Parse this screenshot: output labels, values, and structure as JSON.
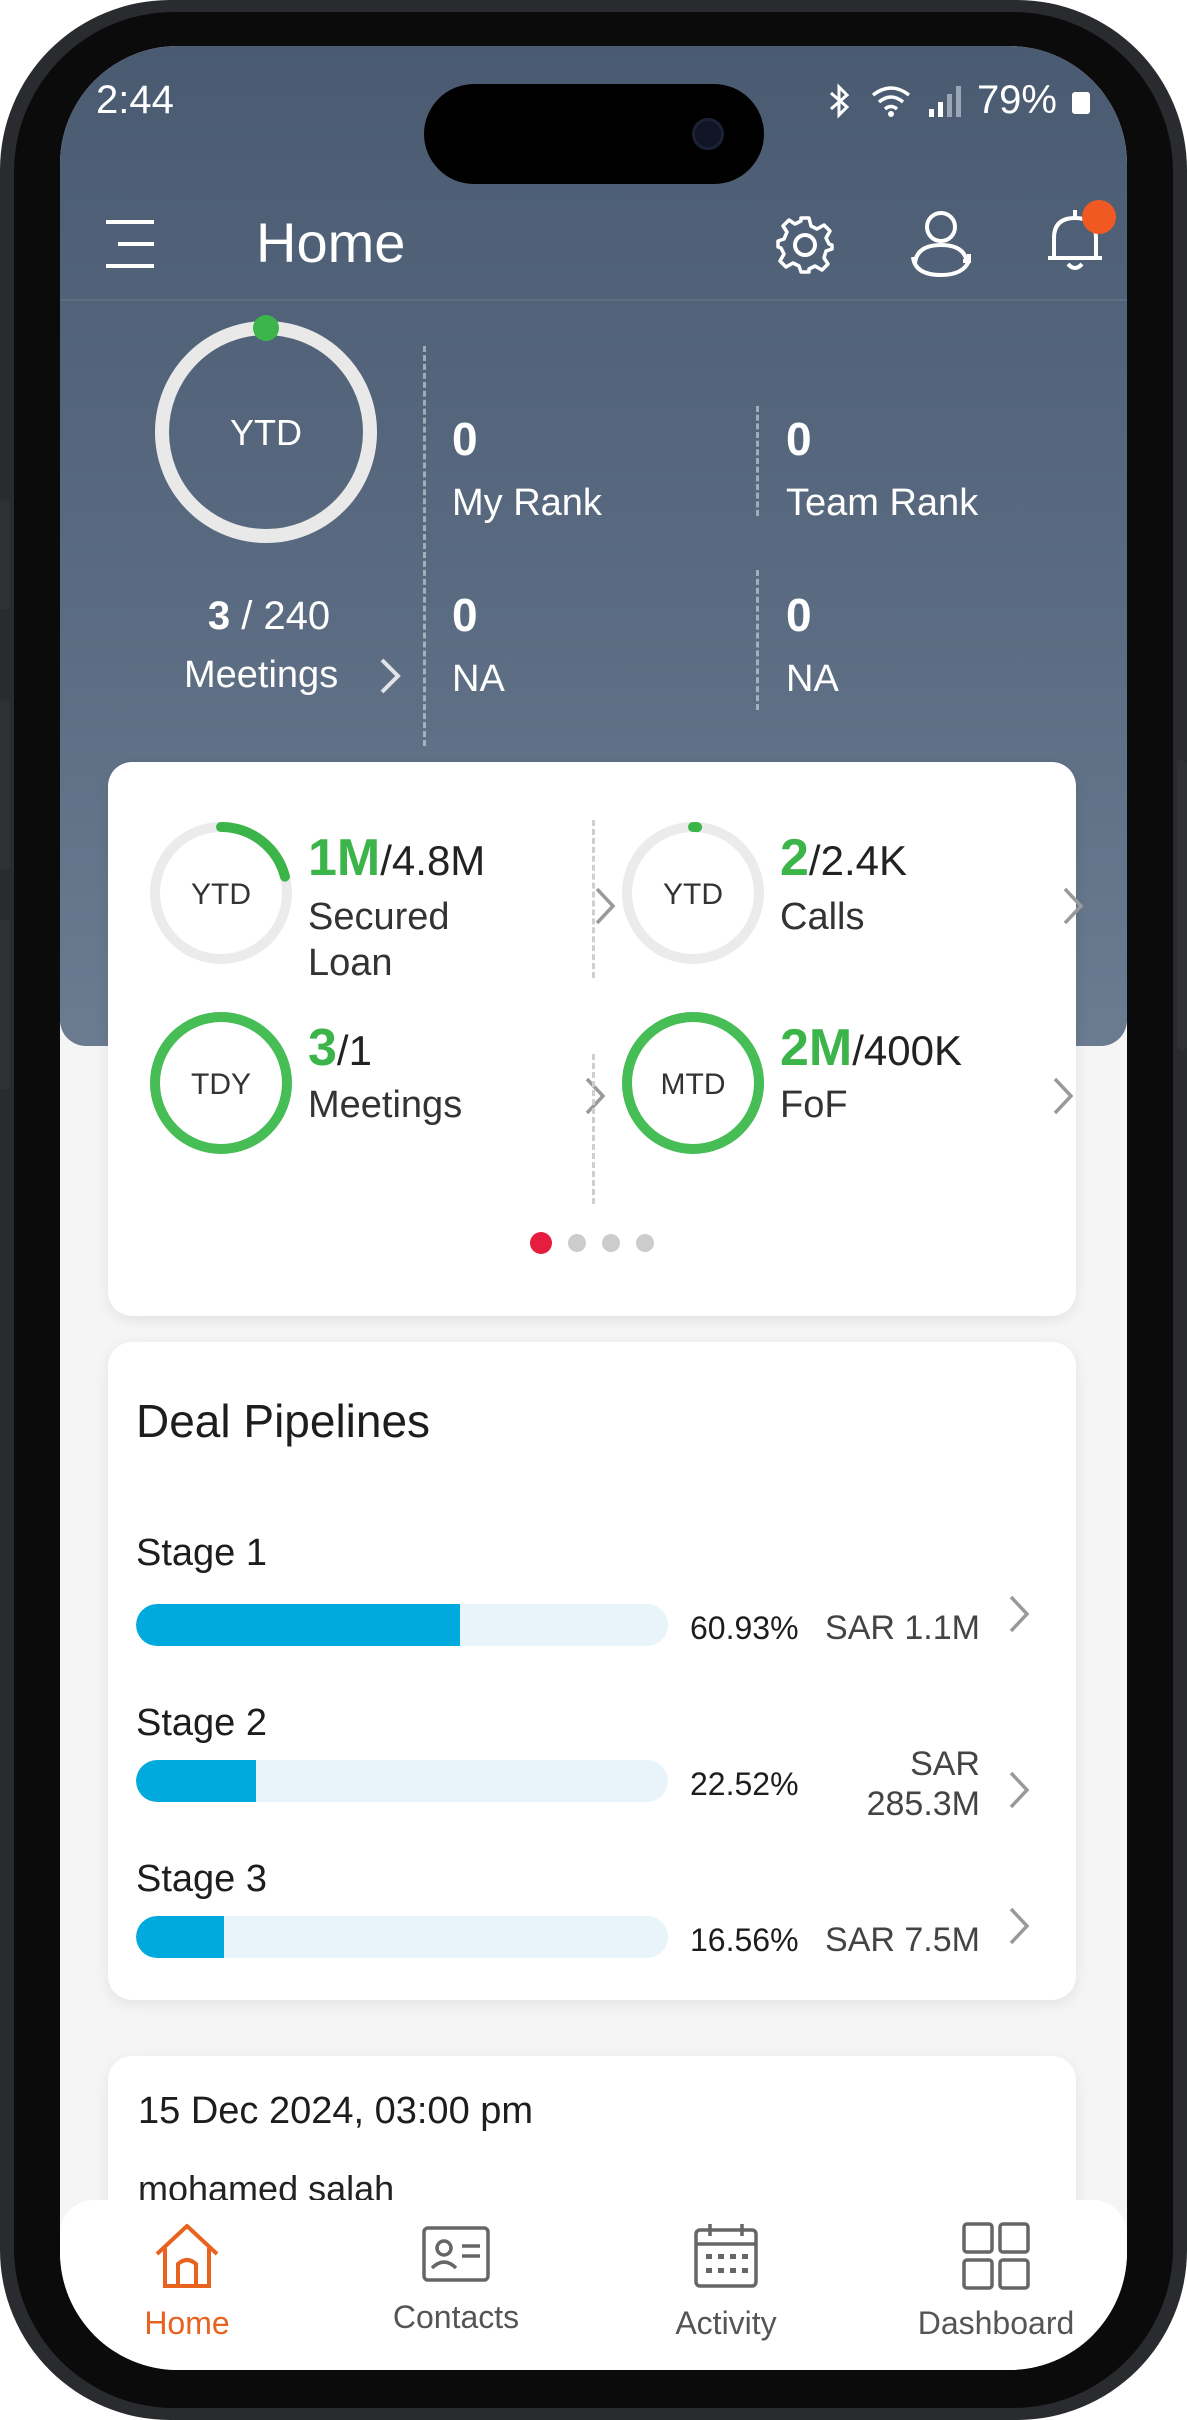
{
  "status_bar": {
    "time": "2:44",
    "battery": "79%"
  },
  "app_bar": {
    "title": "Home"
  },
  "summary": {
    "ring_label": "YTD",
    "meetings_done": "3",
    "meetings_total": "240",
    "meetings_label": "Meetings",
    "stats": [
      {
        "value": "0",
        "label": "My Rank"
      },
      {
        "value": "0",
        "label": "Team Rank"
      },
      {
        "value": "0",
        "label": "NA"
      },
      {
        "value": "0",
        "label": "NA"
      }
    ]
  },
  "kpis": [
    {
      "period": "YTD",
      "value": "1M",
      "target": "4.8M",
      "label_line1": "Secured",
      "label_line2": "Loan",
      "progress": 0.21
    },
    {
      "period": "YTD",
      "value": "2",
      "target": "2.4K",
      "label_line1": "Calls",
      "label_line2": "",
      "progress": 0.01
    },
    {
      "period": "TDY",
      "value": "3",
      "target": "1",
      "label_line1": "Meetings",
      "label_line2": "",
      "progress": 1.0
    },
    {
      "period": "MTD",
      "value": "2M",
      "target": "400K",
      "label_line1": "FoF",
      "label_line2": "",
      "progress": 1.0
    }
  ],
  "carousel": {
    "pages": 4,
    "active": 0
  },
  "deal_pipelines": {
    "title": "Deal Pipelines",
    "stages": [
      {
        "name": "Stage 1",
        "percent": "60.93%",
        "fill": 0.6093,
        "amount_line1": "SAR 1.1M",
        "amount_line2": ""
      },
      {
        "name": "Stage 2",
        "percent": "22.52%",
        "fill": 0.2252,
        "amount_line1": "SAR",
        "amount_line2": "285.3M"
      },
      {
        "name": "Stage 3",
        "percent": "16.56%",
        "fill": 0.1656,
        "amount_line1": "SAR 7.5M",
        "amount_line2": ""
      }
    ]
  },
  "activity": {
    "date": "15 Dec 2024, 03:00 pm",
    "name": "mohamed salah"
  },
  "tabs": [
    {
      "label": "Home",
      "icon": "home-icon"
    },
    {
      "label": "Contacts",
      "icon": "contact-card-icon"
    },
    {
      "label": "Activity",
      "icon": "calendar-icon"
    },
    {
      "label": "Dashboard",
      "icon": "grid-icon"
    }
  ],
  "colors": {
    "accent_green": "#3bb44a",
    "accent_orange": "#e8631f",
    "bar_blue": "#00aadd",
    "header_slate": "#4a5b71",
    "dot_red": "#e51d3f"
  }
}
